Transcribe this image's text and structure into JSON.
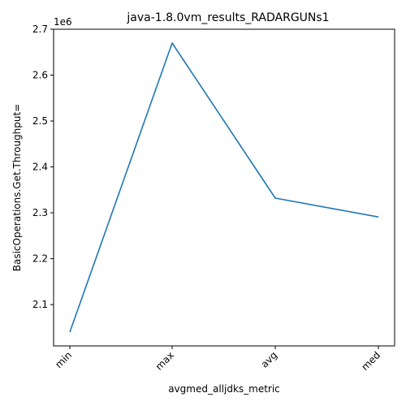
{
  "chart_data": {
    "type": "line",
    "title": "java-1.8.0vm_results_RADARGUNs1",
    "xlabel": "avgmed_alljdks_metric",
    "ylabel": "BasicOperations.Get.Throughput=",
    "y_offset_label": "1e6",
    "categories": [
      "min",
      "max",
      "avg",
      "med"
    ],
    "series": [
      {
        "values": [
          2040000,
          2670000,
          2332000,
          2291000
        ]
      }
    ],
    "ylim": [
      2010000,
      2700000
    ],
    "yticks": [
      2100000,
      2200000,
      2300000,
      2400000,
      2500000,
      2600000,
      2700000
    ],
    "ytick_labels": [
      "2.1",
      "2.2",
      "2.3",
      "2.4",
      "2.5",
      "2.6",
      "2.7"
    ],
    "line_color": "#1f77b4",
    "grid": false,
    "legend": "none"
  }
}
